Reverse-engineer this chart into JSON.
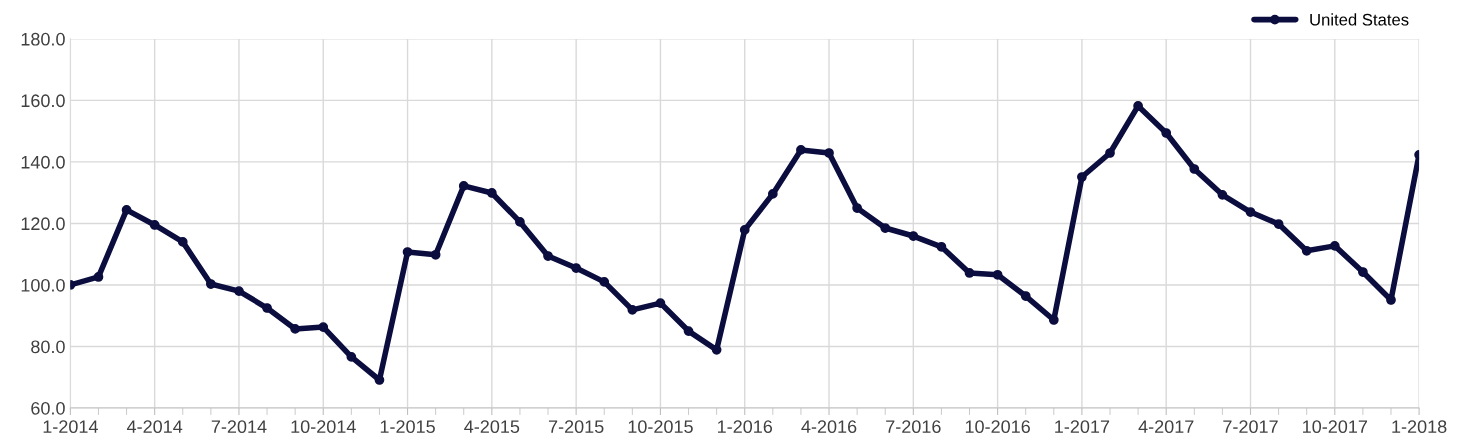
{
  "chart_data": {
    "type": "line",
    "categories": [
      "1-2014",
      null,
      null,
      "4-2014",
      null,
      null,
      "7-2014",
      null,
      null,
      "10-2014",
      null,
      null,
      "1-2015",
      null,
      null,
      "4-2015",
      null,
      null,
      "7-2015",
      null,
      null,
      "10-2015",
      null,
      null,
      "1-2016",
      null,
      null,
      "4-2016",
      null,
      null,
      "7-2016",
      null,
      null,
      "10-2016",
      null,
      null,
      "1-2017",
      null,
      null,
      "4-2017",
      null,
      null,
      "7-2017",
      null,
      null,
      "10-2017",
      null,
      null,
      "1-2018"
    ],
    "series": [
      {
        "name": "United States",
        "color": "#0b0d3f",
        "values": [
          100.0,
          102.6,
          124.4,
          119.5,
          114.0,
          100.3,
          98.0,
          92.5,
          85.7,
          86.3,
          76.6,
          69.1,
          110.7,
          109.8,
          132.2,
          129.9,
          120.5,
          109.4,
          105.5,
          101.0,
          91.9,
          94.1,
          85.0,
          78.9,
          117.9,
          129.6,
          143.9,
          142.9,
          125.0,
          118.5,
          115.9,
          112.4,
          103.9,
          103.3,
          96.4,
          88.6,
          135.1,
          142.9,
          158.2,
          149.4,
          137.7,
          129.3,
          123.7,
          119.8,
          111.1,
          112.7,
          104.2,
          95.1,
          142.3
        ]
      }
    ],
    "ylim": [
      60,
      180
    ],
    "yticks": [
      {
        "value": 60,
        "label": "60.0"
      },
      {
        "value": 80,
        "label": "80.0"
      },
      {
        "value": 100,
        "label": "100.0"
      },
      {
        "value": 120,
        "label": "120.0"
      },
      {
        "value": 140,
        "label": "140.0"
      },
      {
        "value": 160,
        "label": "160.0"
      },
      {
        "value": 180,
        "label": "180.0"
      }
    ],
    "grid": true,
    "legend": "top right",
    "marker": "circle",
    "line_style": "solid"
  }
}
